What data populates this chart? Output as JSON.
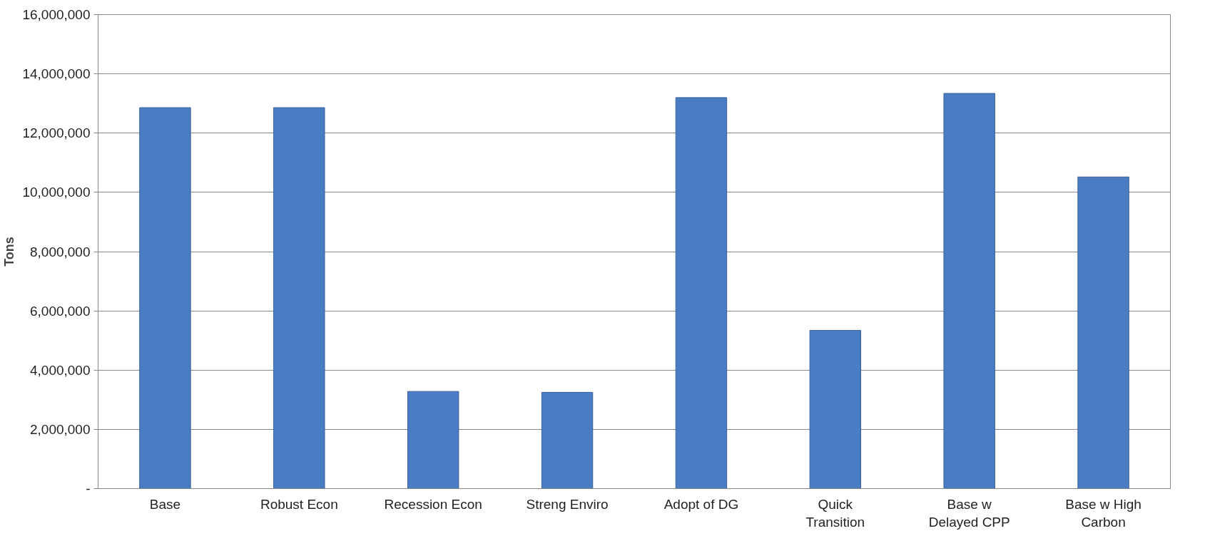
{
  "chart_data": {
    "type": "bar",
    "ylabel": "Tons",
    "categories": [
      "Base",
      "Robust Econ",
      "Recession Econ",
      "Streng Enviro",
      "Adopt of DG",
      "Quick\nTransition",
      "Base w\nDelayed CPP",
      "Base w High\nCarbon"
    ],
    "values": [
      12860000,
      12860000,
      3280000,
      3250000,
      13200000,
      5340000,
      13340000,
      10520000
    ],
    "color": "#4a7cc4",
    "ylim": [
      0,
      16000000
    ],
    "yticks": [
      {
        "value": 0,
        "label": "-"
      },
      {
        "value": 2000000,
        "label": "2,000,000"
      },
      {
        "value": 4000000,
        "label": "4,000,000"
      },
      {
        "value": 6000000,
        "label": "6,000,000"
      },
      {
        "value": 8000000,
        "label": "8,000,000"
      },
      {
        "value": 10000000,
        "label": "10,000,000"
      },
      {
        "value": 12000000,
        "label": "12,000,000"
      },
      {
        "value": 14000000,
        "label": "14,000,000"
      },
      {
        "value": 16000000,
        "label": "16,000,000"
      }
    ],
    "grid": "y"
  }
}
